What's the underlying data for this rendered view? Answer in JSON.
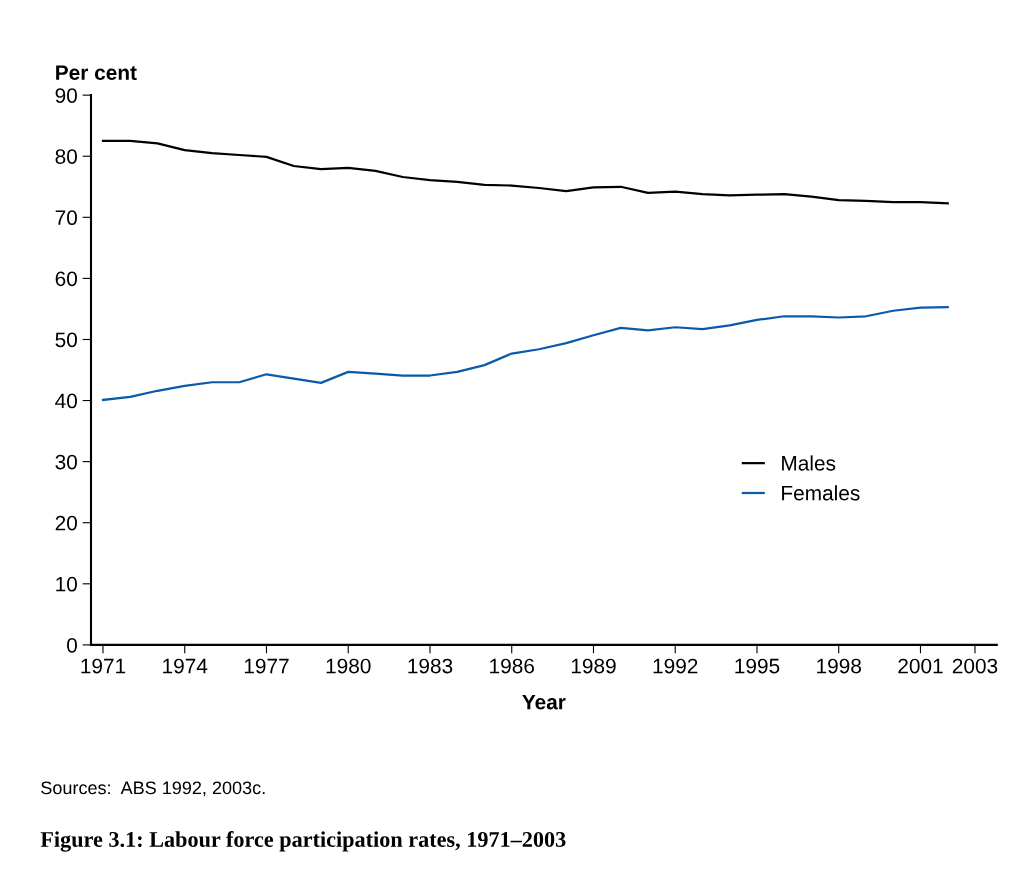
{
  "chart_data": {
    "type": "line",
    "title": "Figure 3.1: Labour force participation rates, 1971–2003",
    "xlabel": "Year",
    "ylabel": "Per cent",
    "annotations": [
      "Sources:  ABS 1992, 2003c."
    ],
    "x": [
      1971,
      1972,
      1973,
      1974,
      1975,
      1976,
      1977,
      1978,
      1979,
      1980,
      1981,
      1982,
      1983,
      1984,
      1985,
      1986,
      1987,
      1988,
      1989,
      1990,
      1991,
      1992,
      1993,
      1994,
      1995,
      1996,
      1997,
      1998,
      1999,
      2000,
      2001,
      2002
    ],
    "series": [
      {
        "name": "Males",
        "color": "#000000",
        "values": [
          82.5,
          82.5,
          82.1,
          81.0,
          80.5,
          80.2,
          79.9,
          78.4,
          77.9,
          78.1,
          77.6,
          76.6,
          76.1,
          75.8,
          75.3,
          75.2,
          74.8,
          74.3,
          74.9,
          75.0,
          74.0,
          74.2,
          73.8,
          73.6,
          73.7,
          73.8,
          73.4,
          72.8,
          72.7,
          72.5,
          72.5,
          72.3
        ]
      },
      {
        "name": "Females",
        "color": "#0a5aaa",
        "values": [
          40.1,
          40.6,
          41.6,
          42.4,
          43.0,
          43.0,
          44.3,
          43.6,
          42.9,
          44.7,
          44.4,
          44.1,
          44.1,
          44.7,
          45.8,
          47.7,
          48.4,
          49.4,
          50.7,
          51.9,
          51.5,
          52.0,
          51.7,
          52.3,
          53.2,
          53.8,
          53.8,
          53.6,
          53.8,
          54.7,
          55.2,
          55.3
        ]
      }
    ],
    "xlim": [
      1970.56,
      2003.8
    ],
    "xticks": [
      1971,
      1974,
      1977,
      1980,
      1983,
      1986,
      1989,
      1992,
      1995,
      1998,
      2001,
      2003
    ],
    "ylim": [
      0,
      90
    ],
    "yticks": [
      0,
      10,
      20,
      30,
      40,
      50,
      60,
      70,
      80,
      90
    ],
    "grid": false,
    "legend": "center right",
    "marker": "none",
    "line_style": "solid"
  }
}
